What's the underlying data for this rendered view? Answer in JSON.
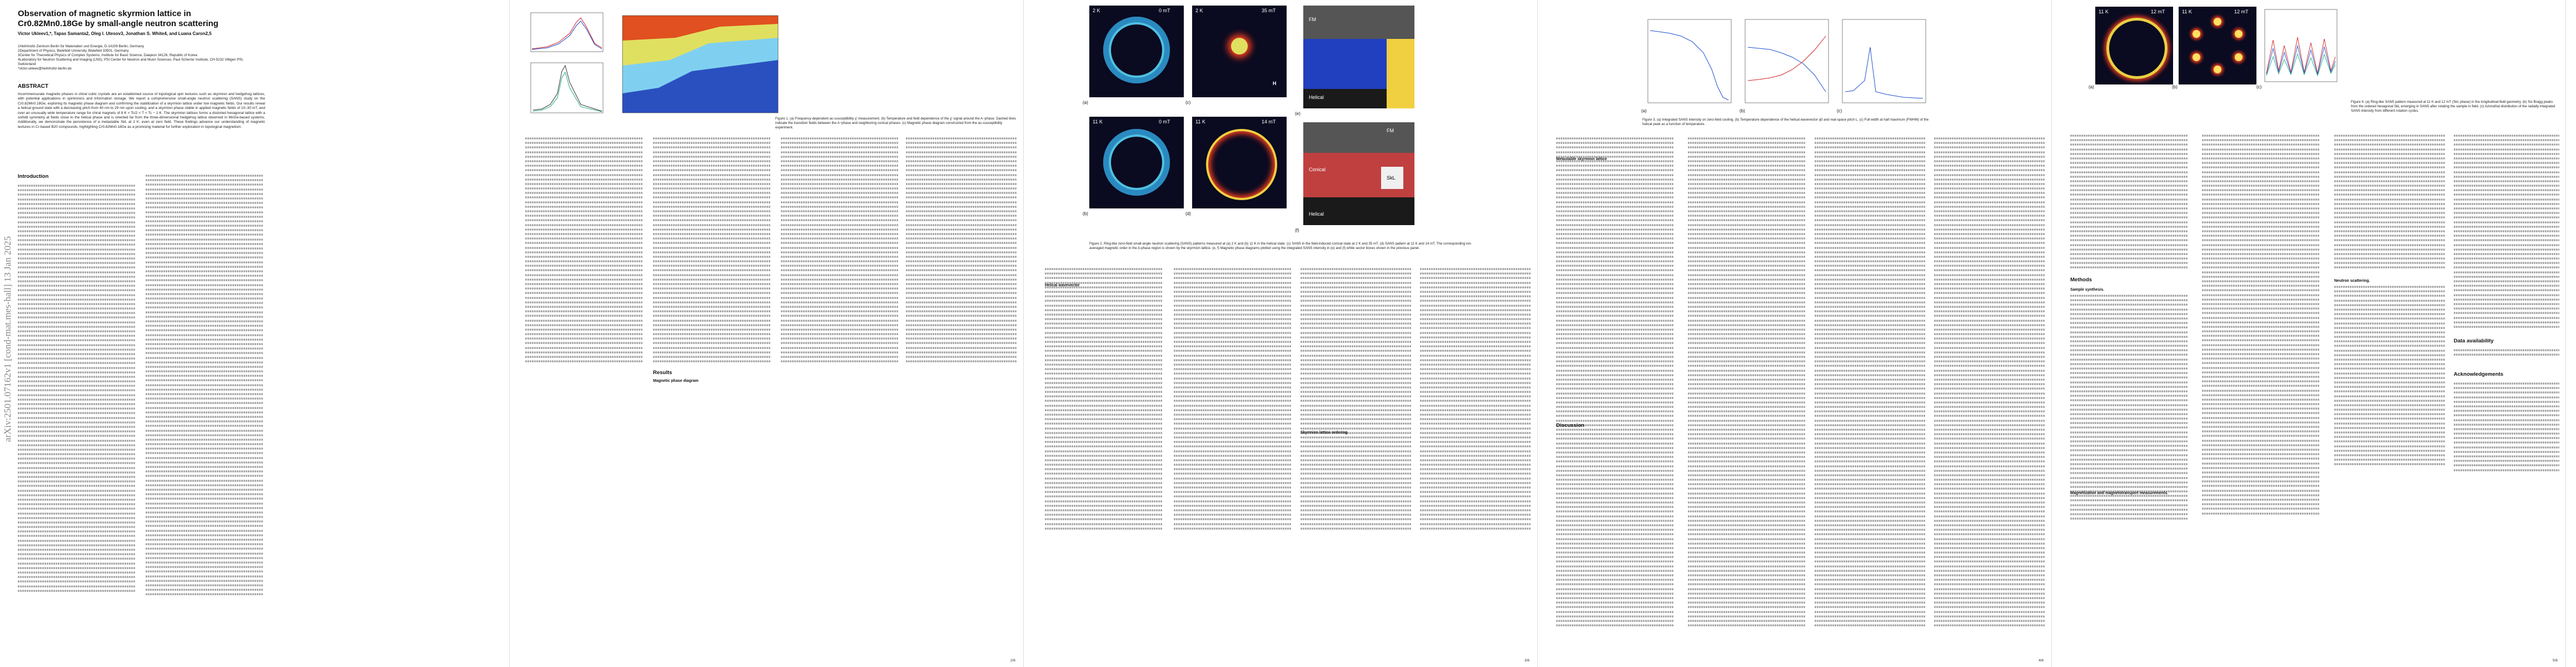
{
  "arxiv_id": "arXiv:2501.07162v1  [cond-mat.mes-hall]  13 Jan 2025",
  "title": "Observation of magnetic skyrmion lattice in Cr0.82Mn0.18Ge by small-angle neutron scattering",
  "authors": "Victor Ukleev1,*, Tapas Samanta2, Oleg I. Utesov3, Jonathan S. White4, and Luana Caron2,5",
  "affiliations": [
    "1Helmholtz-Zentrum Berlin für Materialien und Energie, D-14109 Berlin, Germany",
    "2Department of Physics, Bielefeld University, Bielefeld 33501, Germany",
    "3Center for Theoretical Physics of Complex Systems, Institute for Basic Science, Daejeon 34126, Republic of Korea",
    "4Laboratory for Neutron Scattering and Imaging (LNS), PSI Center for Neutron and Muon Sciences, Paul Scherrer Institute, CH-5232 Villigen PSI, Switzerland",
    "*victor.ukleev@helmholtz-berlin.de"
  ],
  "abstract_heading": "ABSTRACT",
  "abstract": "Incommensurate magnetic phases in chiral cubic crystals are an established source of topological spin textures such as skyrmion and hedgehog lattices, with potential applications in spintronics and information storage. We report a comprehensive small-angle neutron scattering (SANS) study on the Cr0.82Mn0.18Ge, exploring its magnetic phase diagram and confirming the stabilization of a skyrmion lattice under low magnetic fields. Our results reveal a helical ground state with a decreasing pitch from 40 nm to 29 nm upon cooling, and a skyrmion phase stable in applied magnetic fields of 10–30 mT, and over an unusually wide temperature range for chiral magnets of 8 K < Tc/2 < T < Tc − 1 K. The skyrmion lattices forms a distorted hexagonal lattice with a sixfold symmetry at fields close to the helical phase and is oriented far from the three-dimensional hedgehog lattice observed in MnGe-based systems. Additionally, we demonstrate the persistence of a metastable SkL at 2 K, even at zero field. These findings advance our understanding of magnetic textures in Cr-based B20 compounds, highlighting Cr0.82Mn0.18Ge as a promising material for further exploration in topological magnetism.",
  "sections": {
    "introduction": "Introduction",
    "results": "Results",
    "magnetic_phase_diagram": "Magnetic phase diagram",
    "helical_wavevector": "Helical wavevector",
    "skyrmion_lattice_ordering": "Skyrmion lattice ordering",
    "metastable_skyrmion_lattice": "Metastable skyrmion lattice",
    "discussion": "Discussion",
    "methods": "Methods",
    "sample_synthesis": "Sample synthesis.",
    "magnetization": "Magnetization and magnetotransport measurements.",
    "neutron_scattering": "Neutron scattering.",
    "data_availability": "Data availability",
    "acknowledgements": "Acknowledgements"
  },
  "captions": {
    "fig1": "Figure 1. (a) Frequency-dependent ac-susceptibility χ′ measurement. (b) Temperature and field dependence of the χ′ signal around the A−phase. Dashed lines indicate the transition fields between the A−phase and neighboring conical phases. (c) Magnetic phase diagram constructed from the ac-susceptibility experiment.",
    "fig2": "Figure 2. Ring-like zero-field small-angle neutron scattering (SANS) patterns measured at (a) 2 K and (b) 11 K in the helical state. (c) SANS in the field-induced conical state at 2 K and 35 mT. (d) SANS pattern at 11 K and 14 mT. The corresponding ion-averaged magnetic order in the A-phase region is shown by the skyrmion lattice. (e, f) Magnetic phase diagrams plotted using the integrated SANS intensity in (e) and (f) white sector boxes shown in the previous panel.",
    "fig3": "Figure 3. (a) Integrated SANS intensity on zero-field cooling. (b) Temperature dependence of the helical wavevector q0 and real-space pitch L. (c) Full width at half maximum (FWHM) of the helical peak as a function of temperature.",
    "fig4": "Figure 4. (a) Ring-like SANS pattern measured at 11 K and 12 mT (SkL phase) in the longitudinal-field geometry. (b) Six Bragg peaks from the ordered hexagonal SkL emerging in SANS after rotating the sample in field. (c) Azimuthal distribution of the radially integrated SANS intensity from different rotation cycles."
  },
  "panels": {
    "fig2": [
      "(a)",
      "(b)",
      "(c)",
      "(d)",
      "(e)",
      "(f)"
    ],
    "fig2_tags": [
      "2 K",
      "0 mT",
      "2 K",
      "35 mT",
      "11 K",
      "0 mT",
      "11 K",
      "14 mT"
    ],
    "fig2_phase": [
      "FM",
      "Helical",
      "Conical",
      "Helical",
      "FM",
      "SkL"
    ],
    "fig3": [
      "(a)",
      "(b)",
      "(c)"
    ],
    "fig4": [
      "(a)",
      "(b)",
      "(c)"
    ],
    "fig4_tags": [
      "11 K",
      "12 mT",
      "11 K",
      "12 mT"
    ],
    "H": "H"
  },
  "page_numbers": [
    "2/6",
    "3/6",
    "4/6",
    "5/6"
  ],
  "colors": {
    "sans_bg": "#0a0a32",
    "ring": "#e8d040",
    "hot": "#ff3020",
    "phase_red": "#d02020",
    "phase_blue": "#2040c0"
  }
}
